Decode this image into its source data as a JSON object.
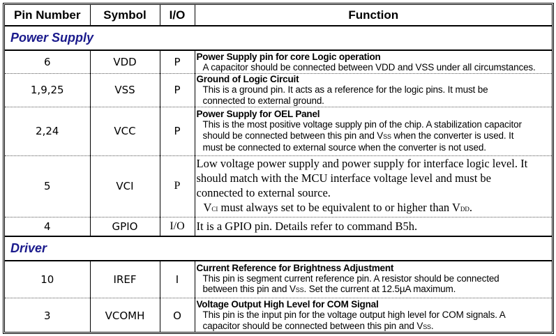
{
  "headers": [
    "Pin Number",
    "Symbol",
    "I/O",
    "Function"
  ],
  "sections": [
    {
      "label": "Power Supply",
      "rows": [
        {
          "pin": "6",
          "symbol": "VDD",
          "io": "P",
          "style": "sans",
          "title": "Power Supply pin for core Logic operation",
          "lines": [
            [
              {
                "t": "A capacitor should be connected between VDD and VSS under all circumstances."
              }
            ]
          ]
        },
        {
          "pin": "1,9,25",
          "symbol": "VSS",
          "io": "P",
          "style": "sans",
          "title": "Ground of Logic Circuit",
          "lines": [
            [
              {
                "t": "This is a ground pin.  It acts as a reference for the logic pins.  It must be"
              }
            ],
            [
              {
                "t": "connected to external ground."
              }
            ]
          ]
        },
        {
          "pin": "2,24",
          "symbol": "VCC",
          "io": "P",
          "style": "sans",
          "title": "Power Supply for OEL Panel",
          "lines": [
            [
              {
                "t": "This is the most positive voltage supply pin of the chip.   A stabilization capacitor"
              }
            ],
            [
              {
                "t": "should be connected between this pin and V"
              },
              {
                "s": "SS"
              },
              {
                "t": " when the converter is used.   It"
              }
            ],
            [
              {
                "t": "must be connected to external source when the converter is not used."
              }
            ]
          ]
        },
        {
          "pin": "5",
          "symbol": "VCI",
          "io": "P",
          "style": "serif",
          "title": "",
          "lines": [
            [
              {
                "t": "Low voltage power supply and power supply for interface logic level. It"
              }
            ],
            [
              {
                "t": "should match with the MCU interface voltage level and must be"
              }
            ],
            [
              {
                "t": "connected to external source."
              }
            ],
            [
              {
                "t": "V"
              },
              {
                "s": "CI"
              },
              {
                "t": " must always set to be equivalent to or higher than V"
              },
              {
                "s": "DD"
              },
              {
                "t": "."
              }
            ]
          ]
        },
        {
          "pin": "4",
          "symbol": "GPIO",
          "io": "I/O",
          "style": "serif",
          "title": "",
          "lines": [
            [
              {
                "t": "It is a GPIO pin. Details refer to command B5h."
              }
            ]
          ]
        }
      ]
    },
    {
      "label": "Driver",
      "rows": [
        {
          "pin": "10",
          "symbol": "IREF",
          "io": "I",
          "style": "sans",
          "title": "Current Reference for Brightness Adjustment",
          "lines": [
            [
              {
                "t": "This pin is segment current reference pin.   A resistor should be connected"
              }
            ],
            [
              {
                "t": "between this pin and V"
              },
              {
                "s": "SS"
              },
              {
                "t": ".   Set the current at 12.5µA maximum."
              }
            ]
          ]
        },
        {
          "pin": "3",
          "symbol": "VCOMH",
          "io": "O",
          "style": "sans",
          "title": "Voltage Output High Level for COM Signal",
          "lines": [
            [
              {
                "t": "This pin is the input pin for the voltage output high level for COM signals.   A"
              }
            ],
            [
              {
                "t": "capacitor should be connected between this pin and V"
              },
              {
                "s": "SS"
              },
              {
                "t": "."
              }
            ]
          ]
        }
      ]
    }
  ]
}
